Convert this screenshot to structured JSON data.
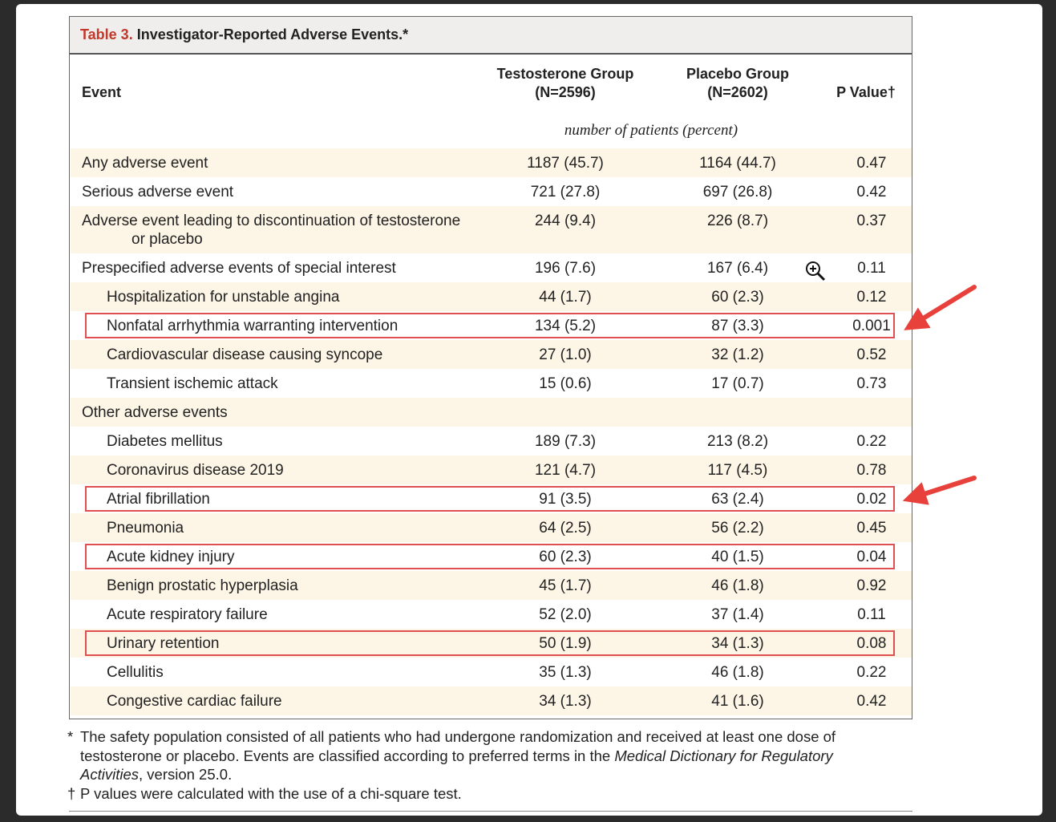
{
  "title": {
    "label": "Table 3.",
    "text": "Investigator-Reported Adverse Events.*"
  },
  "header": {
    "event": "Event",
    "testosterone": [
      "Testosterone Group",
      "(N=2596)"
    ],
    "placebo": [
      "Placebo Group",
      "(N=2602)"
    ],
    "p_value": "P Value†",
    "unit": "number of patients (percent)"
  },
  "rows": [
    {
      "label": [
        "Any adverse event"
      ],
      "testosterone": "1187 (45.7)",
      "placebo": "1164 (44.7)",
      "p": "0.47"
    },
    {
      "label": [
        "Serious adverse event"
      ],
      "testosterone": "721 (27.8)",
      "placebo": "697 (26.8)",
      "p": "0.42"
    },
    {
      "label": [
        "Adverse event leading to discontinuation of testosterone",
        "or placebo"
      ],
      "testosterone": "244 (9.4)",
      "placebo": "226 (8.7)",
      "p": "0.37"
    },
    {
      "label": [
        "Prespecified adverse events of special interest"
      ],
      "testosterone": "196 (7.6)",
      "placebo": "167 (6.4)",
      "p": "0.11"
    },
    {
      "label": [
        "Hospitalization for unstable angina"
      ],
      "testosterone": "44 (1.7)",
      "placebo": "60 (2.3)",
      "p": "0.12",
      "indent": true
    },
    {
      "label": [
        "Nonfatal arrhythmia warranting intervention"
      ],
      "testosterone": "134 (5.2)",
      "placebo": "87 (3.3)",
      "p": "0.001",
      "indent": true,
      "highlighted": true,
      "arrow": true
    },
    {
      "label": [
        "Cardiovascular disease causing syncope"
      ],
      "testosterone": "27 (1.0)",
      "placebo": "32 (1.2)",
      "p": "0.52",
      "indent": true
    },
    {
      "label": [
        "Transient ischemic attack"
      ],
      "testosterone": "15 (0.6)",
      "placebo": "17 (0.7)",
      "p": "0.73",
      "indent": true
    },
    {
      "label": [
        "Other adverse events"
      ]
    },
    {
      "label": [
        "Diabetes mellitus"
      ],
      "testosterone": "189 (7.3)",
      "placebo": "213 (8.2)",
      "p": "0.22",
      "indent": true
    },
    {
      "label": [
        "Coronavirus disease 2019"
      ],
      "testosterone": "121 (4.7)",
      "placebo": "117 (4.5)",
      "p": "0.78",
      "indent": true
    },
    {
      "label": [
        "Atrial fibrillation"
      ],
      "testosterone": "91 (3.5)",
      "placebo": "63 (2.4)",
      "p": "0.02",
      "indent": true,
      "highlighted": true,
      "arrow": true
    },
    {
      "label": [
        "Pneumonia"
      ],
      "testosterone": "64 (2.5)",
      "placebo": "56 (2.2)",
      "p": "0.45",
      "indent": true
    },
    {
      "label": [
        "Acute kidney injury"
      ],
      "testosterone": "60 (2.3)",
      "placebo": "40 (1.5)",
      "p": "0.04",
      "indent": true,
      "highlighted": true
    },
    {
      "label": [
        "Benign prostatic hyperplasia"
      ],
      "testosterone": "45 (1.7)",
      "placebo": "46 (1.8)",
      "p": "0.92",
      "indent": true
    },
    {
      "label": [
        "Acute respiratory failure"
      ],
      "testosterone": "52 (2.0)",
      "placebo": "37 (1.4)",
      "p": "0.11",
      "indent": true
    },
    {
      "label": [
        "Urinary retention"
      ],
      "testosterone": "50 (1.9)",
      "placebo": "34 (1.3)",
      "p": "0.08",
      "indent": true,
      "highlighted": true
    },
    {
      "label": [
        "Cellulitis"
      ],
      "testosterone": "35 (1.3)",
      "placebo": "46 (1.8)",
      "p": "0.22",
      "indent": true
    },
    {
      "label": [
        "Congestive cardiac failure"
      ],
      "testosterone": "34 (1.3)",
      "placebo": "41 (1.6)",
      "p": "0.42",
      "indent": true
    }
  ],
  "footnotes": [
    {
      "marker": "*",
      "text": "The safety population consisted of all patients who had undergone randomization and received at least one dose of testosterone or placebo. Events are classified according to preferred terms in the ",
      "italic": "Medical Dictionary for Regulatory Activities",
      "after": ", version 25.0."
    },
    {
      "marker": "†",
      "text": "P values were calculated with the use of a chi-square test."
    }
  ]
}
